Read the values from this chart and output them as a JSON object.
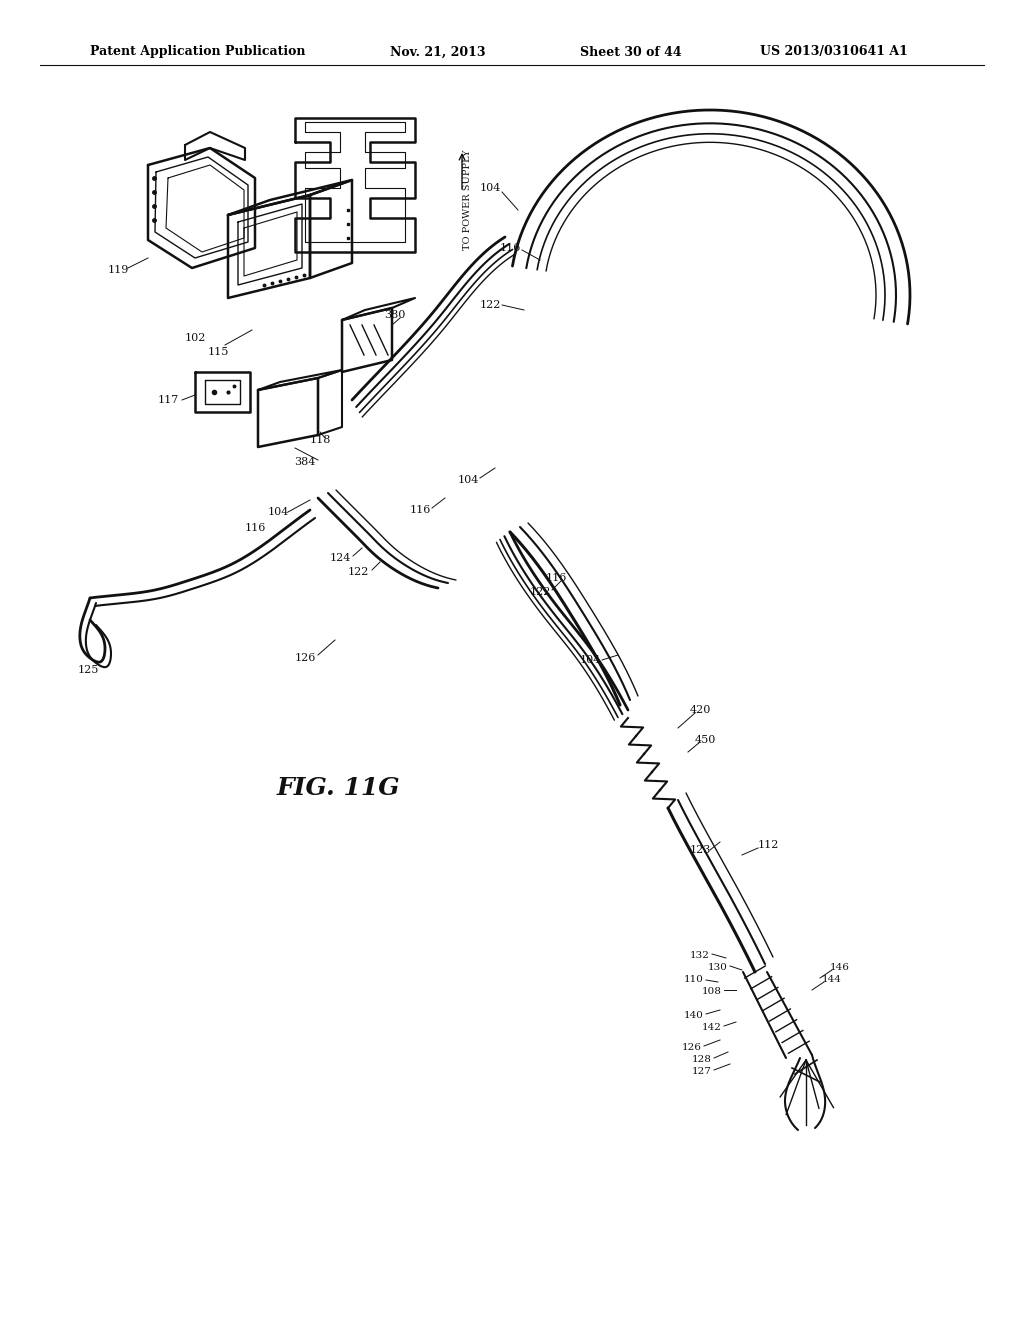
{
  "bg_color": "#ffffff",
  "line_color": "#111111",
  "header_text": "Patent Application Publication",
  "header_date": "Nov. 21, 2013",
  "header_sheet": "Sheet 30 of 44",
  "header_patent": "US 2013/0310641 A1",
  "figure_label": "FIG. 11G"
}
